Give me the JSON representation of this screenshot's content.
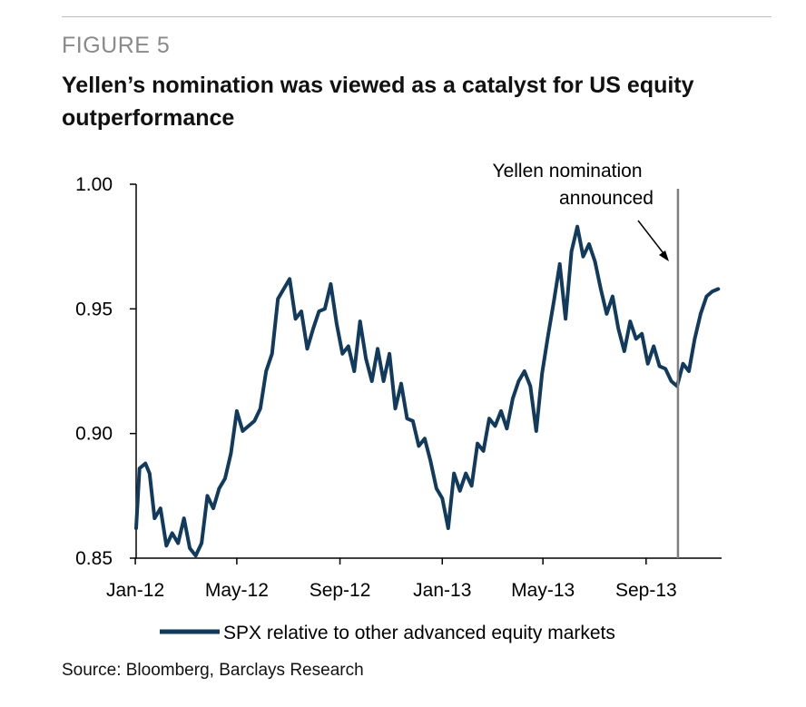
{
  "figure_label": "FIGURE 5",
  "title": "Yellen’s nomination was viewed as a catalyst for US equity outperformance",
  "source": "Source: Bloomberg, Barclays Research",
  "colors": {
    "series": "#123a5c",
    "marker_line": "#7f7f7f",
    "axis": "#000000",
    "figure_label": "#8a8a8a"
  },
  "chart_data": {
    "type": "line",
    "ylim": [
      0.85,
      1.0
    ],
    "yticks": [
      "1.00",
      "0.95",
      "0.90",
      "0.85"
    ],
    "xticks": [
      "Jan-12",
      "May-12",
      "Sep-12",
      "Jan-13",
      "May-13",
      "Sep-13"
    ],
    "x_range": [
      "2012-01-02",
      "2013-11-30"
    ],
    "annotation": {
      "text_line1": "Yellen nomination",
      "text_line2": "announced",
      "date": "2013-10-09"
    },
    "legend": {
      "position": "bottom",
      "label": "SPX relative to other advanced equity markets"
    },
    "series": [
      {
        "name": "SPX relative to other advanced equity markets",
        "points": [
          [
            "2012-01-02",
            0.862
          ],
          [
            "2012-01-06",
            0.886
          ],
          [
            "2012-01-13",
            0.888
          ],
          [
            "2012-01-18",
            0.884
          ],
          [
            "2012-01-24",
            0.866
          ],
          [
            "2012-01-31",
            0.87
          ],
          [
            "2012-02-07",
            0.855
          ],
          [
            "2012-02-14",
            0.86
          ],
          [
            "2012-02-21",
            0.856
          ],
          [
            "2012-02-28",
            0.866
          ],
          [
            "2012-03-06",
            0.854
          ],
          [
            "2012-03-13",
            0.851
          ],
          [
            "2012-03-20",
            0.856
          ],
          [
            "2012-03-27",
            0.875
          ],
          [
            "2012-04-03",
            0.87
          ],
          [
            "2012-04-10",
            0.878
          ],
          [
            "2012-04-17",
            0.882
          ],
          [
            "2012-04-24",
            0.892
          ],
          [
            "2012-05-01",
            0.909
          ],
          [
            "2012-05-08",
            0.901
          ],
          [
            "2012-05-15",
            0.903
          ],
          [
            "2012-05-22",
            0.905
          ],
          [
            "2012-05-29",
            0.91
          ],
          [
            "2012-06-05",
            0.925
          ],
          [
            "2012-06-12",
            0.932
          ],
          [
            "2012-06-19",
            0.954
          ],
          [
            "2012-06-26",
            0.958
          ],
          [
            "2012-07-03",
            0.962
          ],
          [
            "2012-07-10",
            0.946
          ],
          [
            "2012-07-17",
            0.949
          ],
          [
            "2012-07-24",
            0.934
          ],
          [
            "2012-07-31",
            0.942
          ],
          [
            "2012-08-07",
            0.949
          ],
          [
            "2012-08-14",
            0.95
          ],
          [
            "2012-08-21",
            0.96
          ],
          [
            "2012-08-28",
            0.944
          ],
          [
            "2012-09-04",
            0.932
          ],
          [
            "2012-09-11",
            0.935
          ],
          [
            "2012-09-18",
            0.925
          ],
          [
            "2012-09-25",
            0.945
          ],
          [
            "2012-10-02",
            0.93
          ],
          [
            "2012-10-09",
            0.921
          ],
          [
            "2012-10-16",
            0.934
          ],
          [
            "2012-10-23",
            0.921
          ],
          [
            "2012-10-30",
            0.932
          ],
          [
            "2012-11-06",
            0.91
          ],
          [
            "2012-11-13",
            0.92
          ],
          [
            "2012-11-20",
            0.906
          ],
          [
            "2012-11-27",
            0.905
          ],
          [
            "2012-12-04",
            0.895
          ],
          [
            "2012-12-11",
            0.898
          ],
          [
            "2012-12-18",
            0.889
          ],
          [
            "2012-12-25",
            0.878
          ],
          [
            "2013-01-01",
            0.874
          ],
          [
            "2013-01-08",
            0.862
          ],
          [
            "2013-01-15",
            0.884
          ],
          [
            "2013-01-22",
            0.877
          ],
          [
            "2013-01-29",
            0.884
          ],
          [
            "2013-02-05",
            0.879
          ],
          [
            "2013-02-12",
            0.896
          ],
          [
            "2013-02-19",
            0.893
          ],
          [
            "2013-02-26",
            0.906
          ],
          [
            "2013-03-05",
            0.903
          ],
          [
            "2013-03-12",
            0.909
          ],
          [
            "2013-03-19",
            0.902
          ],
          [
            "2013-03-26",
            0.914
          ],
          [
            "2013-04-02",
            0.921
          ],
          [
            "2013-04-09",
            0.925
          ],
          [
            "2013-04-16",
            0.919
          ],
          [
            "2013-04-23",
            0.901
          ],
          [
            "2013-04-30",
            0.924
          ],
          [
            "2013-05-07",
            0.939
          ],
          [
            "2013-05-14",
            0.953
          ],
          [
            "2013-05-21",
            0.968
          ],
          [
            "2013-05-28",
            0.946
          ],
          [
            "2013-06-04",
            0.973
          ],
          [
            "2013-06-11",
            0.983
          ],
          [
            "2013-06-18",
            0.971
          ],
          [
            "2013-06-25",
            0.976
          ],
          [
            "2013-07-02",
            0.969
          ],
          [
            "2013-07-09",
            0.958
          ],
          [
            "2013-07-16",
            0.948
          ],
          [
            "2013-07-23",
            0.955
          ],
          [
            "2013-07-30",
            0.942
          ],
          [
            "2013-08-06",
            0.933
          ],
          [
            "2013-08-13",
            0.945
          ],
          [
            "2013-08-20",
            0.938
          ],
          [
            "2013-08-27",
            0.94
          ],
          [
            "2013-09-03",
            0.928
          ],
          [
            "2013-09-10",
            0.935
          ],
          [
            "2013-09-17",
            0.927
          ],
          [
            "2013-09-24",
            0.926
          ],
          [
            "2013-10-01",
            0.921
          ],
          [
            "2013-10-08",
            0.919
          ],
          [
            "2013-10-15",
            0.928
          ],
          [
            "2013-10-22",
            0.925
          ],
          [
            "2013-10-29",
            0.938
          ],
          [
            "2013-11-05",
            0.948
          ],
          [
            "2013-11-12",
            0.955
          ],
          [
            "2013-11-19",
            0.957
          ],
          [
            "2013-11-26",
            0.958
          ]
        ]
      }
    ]
  }
}
